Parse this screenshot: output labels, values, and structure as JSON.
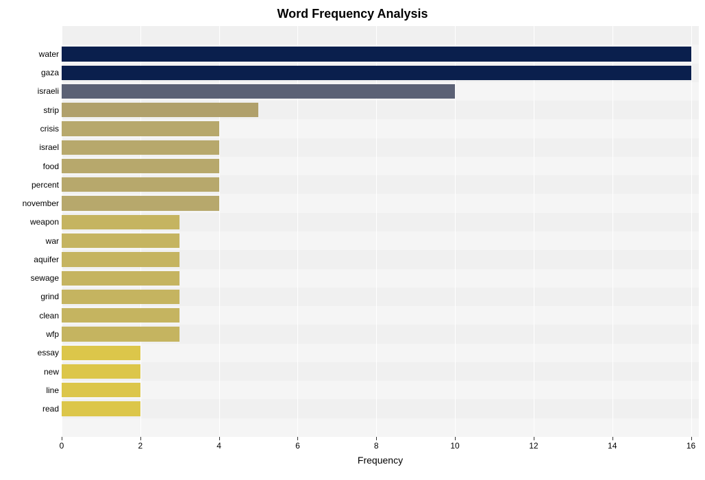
{
  "chart": {
    "type": "bar",
    "orientation": "horizontal",
    "title": "Word Frequency Analysis",
    "title_fontsize": 18,
    "title_fontweight": "bold",
    "xlabel": "Frequency",
    "xlabel_fontsize": 14,
    "ylabel_fontsize": 12,
    "xtick_fontsize": 12,
    "xlim": [
      0,
      16.2
    ],
    "xtick_step": 2,
    "xticks": [
      0,
      2,
      4,
      6,
      8,
      10,
      12,
      14,
      16
    ],
    "background_color": "#ffffff",
    "plot_bgcolor": "#f5f5f5",
    "grid_color": "#ffffff",
    "bar_height_ratio": 0.78,
    "categories": [
      "water",
      "gaza",
      "israeli",
      "strip",
      "crisis",
      "israel",
      "food",
      "percent",
      "november",
      "weapon",
      "war",
      "aquifer",
      "sewage",
      "grind",
      "clean",
      "wfp",
      "essay",
      "new",
      "line",
      "read"
    ],
    "values": [
      16,
      16,
      10,
      5,
      4,
      4,
      4,
      4,
      4,
      3,
      3,
      3,
      3,
      3,
      3,
      3,
      2,
      2,
      2,
      2
    ],
    "bar_colors": [
      "#0a1f4d",
      "#0a1f4d",
      "#5b6175",
      "#b0a06b",
      "#b7a86c",
      "#b7a86c",
      "#b7a86c",
      "#b7a86c",
      "#b7a86c",
      "#c5b460",
      "#c5b460",
      "#c5b460",
      "#c5b460",
      "#c5b460",
      "#c5b460",
      "#c5b460",
      "#dcc64a",
      "#dcc64a",
      "#dcc64a",
      "#dcc64a"
    ]
  }
}
